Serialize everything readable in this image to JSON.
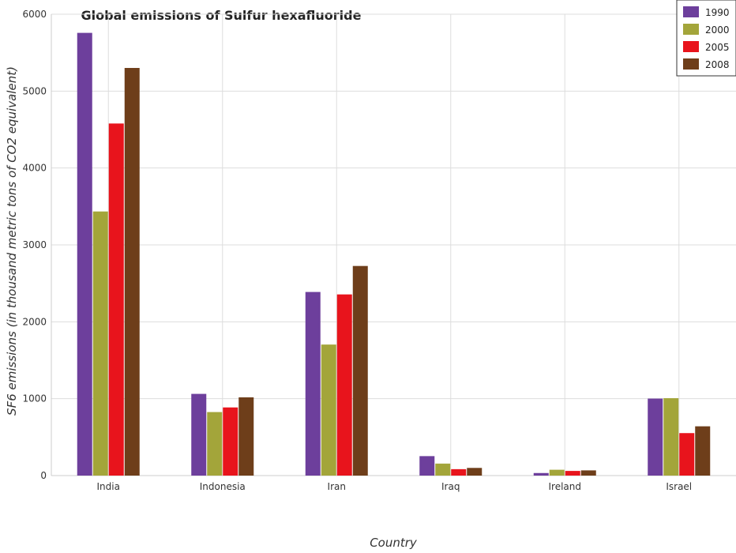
{
  "chart_data": {
    "type": "bar",
    "title": "Global emissions of Sulfur hexafluoride",
    "xlabel": "Country",
    "ylabel": "SF6 emissions (in thousand metric tons of CO2 equivalent)",
    "categories": [
      "India",
      "Indonesia",
      "Iran",
      "Iraq",
      "Ireland",
      "Israel"
    ],
    "series": [
      {
        "name": "1990",
        "color": "#6d3f9c",
        "values": [
          5757.5,
          1062.5,
          2387.8,
          253.1,
          33.2,
          1001.6
        ]
      },
      {
        "name": "2000",
        "color": "#a3a53a",
        "values": [
          3434.7,
          826.1,
          1703.9,
          155.9,
          75.8,
          1006.5
        ]
      },
      {
        "name": "2005",
        "color": "#e8141c",
        "values": [
          4578.7,
          886.2,
          2356.1,
          83.4,
          60.6,
          552.4
        ]
      },
      {
        "name": "2008",
        "color": "#6e3e1a",
        "values": [
          5301.2,
          1017.5,
          2726.0,
          99.7,
          67.6,
          640.7
        ]
      }
    ],
    "yticks": [
      0,
      1000,
      2000,
      3000,
      4000,
      5000,
      6000
    ],
    "ylim": [
      0,
      6000
    ],
    "grid": true,
    "legend_position": "top-right"
  }
}
